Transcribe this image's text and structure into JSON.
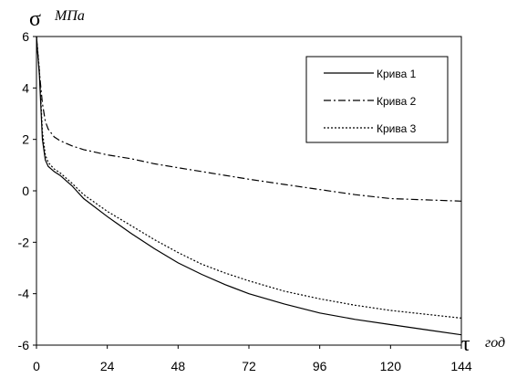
{
  "chart_data": {
    "type": "line",
    "xlabel_symbol": "τ",
    "xlabel_unit": "год",
    "ylabel_symbol": "σ",
    "ylabel_unit": "МПа",
    "xlim": [
      0,
      144
    ],
    "ylim": [
      -6,
      6
    ],
    "xticks": [
      "0",
      "24",
      "48",
      "72",
      "96",
      "120",
      "144"
    ],
    "yticks": [
      "6",
      "4",
      "2",
      "0",
      "-2",
      "-4",
      "-6"
    ],
    "grid": false,
    "legend_position": "top-right",
    "series": [
      {
        "name": "Крива 1",
        "style": "solid",
        "color": "#000000",
        "x": [
          0,
          1,
          2,
          3,
          4,
          6,
          8,
          12,
          16,
          24,
          32,
          40,
          48,
          56,
          64,
          72,
          84,
          96,
          108,
          120,
          132,
          144
        ],
        "y": [
          6,
          4.5,
          2.0,
          1.2,
          0.95,
          0.75,
          0.6,
          0.2,
          -0.3,
          -1.0,
          -1.65,
          -2.25,
          -2.8,
          -3.25,
          -3.65,
          -4.0,
          -4.4,
          -4.75,
          -5.0,
          -5.2,
          -5.4,
          -5.6
        ]
      },
      {
        "name": "Крива 2",
        "style": "dash-dot",
        "color": "#000000",
        "x": [
          0,
          1,
          2,
          3,
          4,
          6,
          8,
          12,
          16,
          24,
          32,
          40,
          48,
          56,
          64,
          72,
          84,
          96,
          108,
          120,
          132,
          144
        ],
        "y": [
          6,
          4.6,
          3.4,
          2.7,
          2.4,
          2.1,
          1.95,
          1.75,
          1.6,
          1.4,
          1.25,
          1.05,
          0.9,
          0.75,
          0.6,
          0.45,
          0.25,
          0.05,
          -0.15,
          -0.3,
          -0.35,
          -0.4
        ]
      },
      {
        "name": "Крива 3",
        "style": "dotted",
        "color": "#000000",
        "x": [
          0,
          1,
          2,
          3,
          4,
          6,
          8,
          12,
          16,
          24,
          32,
          40,
          48,
          56,
          64,
          72,
          84,
          96,
          108,
          120,
          132,
          144
        ],
        "y": [
          6,
          4.7,
          2.3,
          1.4,
          1.1,
          0.85,
          0.7,
          0.3,
          -0.15,
          -0.8,
          -1.35,
          -1.9,
          -2.4,
          -2.85,
          -3.2,
          -3.5,
          -3.9,
          -4.2,
          -4.45,
          -4.65,
          -4.8,
          -4.95
        ]
      }
    ]
  }
}
